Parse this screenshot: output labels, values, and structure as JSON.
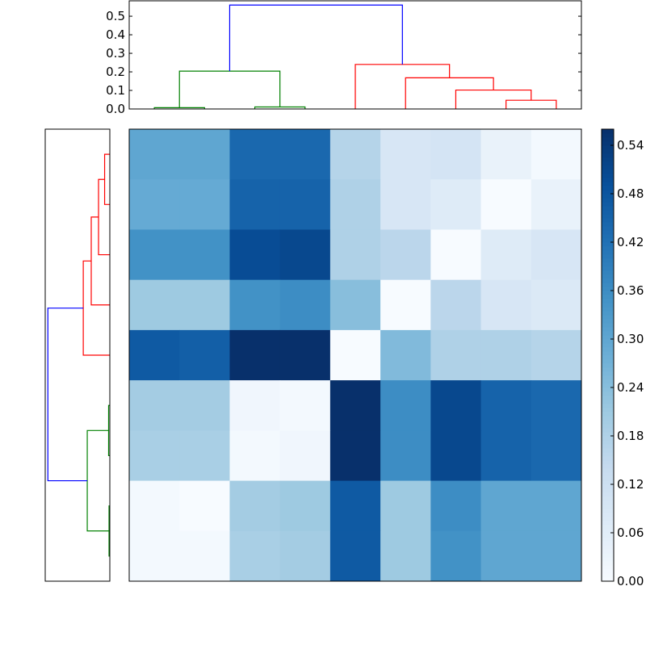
{
  "chart_data": [
    {
      "type": "dendrogram",
      "orientation": "top",
      "ylim": [
        0,
        0.583
      ],
      "yticks": [
        "0.0",
        "0.1",
        "0.2",
        "0.3",
        "0.4",
        "0.5"
      ],
      "ytick_values": [
        0,
        0.1,
        0.2,
        0.3,
        0.4,
        0.5
      ],
      "links": [
        {
          "leaf_pos": [
            0,
            0,
            1,
            1
          ],
          "heights": [
            0,
            0.007,
            0.007,
            0
          ],
          "color": "#008000"
        },
        {
          "leaf_pos": [
            2,
            2,
            3,
            3
          ],
          "heights": [
            0,
            0.011,
            0.011,
            0
          ],
          "color": "#008000"
        },
        {
          "leaf_pos": [
            0.5,
            0.5,
            2.5,
            2.5
          ],
          "heights": [
            0.007,
            0.204,
            0.204,
            0.011
          ],
          "color": "#008000"
        },
        {
          "leaf_pos": [
            7,
            7,
            8,
            8
          ],
          "heights": [
            0,
            0.047,
            0.047,
            0
          ],
          "color": "#ff0000"
        },
        {
          "leaf_pos": [
            6,
            6,
            7.5,
            7.5
          ],
          "heights": [
            0,
            0.102,
            0.102,
            0.047
          ],
          "color": "#ff0000"
        },
        {
          "leaf_pos": [
            5,
            5,
            6.75,
            6.75
          ],
          "heights": [
            0,
            0.168,
            0.168,
            0.102
          ],
          "color": "#ff0000"
        },
        {
          "leaf_pos": [
            4,
            4,
            5.875,
            5.875
          ],
          "heights": [
            0,
            0.24,
            0.24,
            0.168
          ],
          "color": "#ff0000"
        },
        {
          "leaf_pos": [
            1.5,
            1.5,
            4.9375,
            4.9375
          ],
          "heights": [
            0.204,
            0.56,
            0.56,
            0.24
          ],
          "color": "#0000ff"
        }
      ]
    },
    {
      "type": "dendrogram",
      "orientation": "left",
      "xlim": [
        0.584,
        0
      ],
      "links": [
        {
          "leaf_pos": [
            0,
            0,
            1,
            1
          ],
          "heights": [
            0,
            0.047,
            0.047,
            0
          ],
          "color": "#ff0000"
        },
        {
          "leaf_pos": [
            0.5,
            0.5,
            2,
            2
          ],
          "heights": [
            0.047,
            0.102,
            0.102,
            0
          ],
          "color": "#ff0000"
        },
        {
          "leaf_pos": [
            1.25,
            1.25,
            3,
            3
          ],
          "heights": [
            0.102,
            0.168,
            0.168,
            0
          ],
          "color": "#ff0000"
        },
        {
          "leaf_pos": [
            2.125,
            2.125,
            4,
            4
          ],
          "heights": [
            0.168,
            0.24,
            0.24,
            0
          ],
          "color": "#ff0000"
        },
        {
          "leaf_pos": [
            5,
            5,
            6,
            6
          ],
          "heights": [
            0,
            0.011,
            0.011,
            0
          ],
          "color": "#008000"
        },
        {
          "leaf_pos": [
            7,
            7,
            8,
            8
          ],
          "heights": [
            0,
            0.007,
            0.007,
            0
          ],
          "color": "#008000"
        },
        {
          "leaf_pos": [
            5.5,
            5.5,
            7.5,
            7.5
          ],
          "heights": [
            0.011,
            0.204,
            0.204,
            0.007
          ],
          "color": "#008000"
        },
        {
          "leaf_pos": [
            3.0625,
            3.0625,
            6.5,
            6.5
          ],
          "heights": [
            0.24,
            0.56,
            0.56,
            0.204
          ],
          "color": "#0000ff"
        }
      ]
    },
    {
      "type": "heatmap",
      "colormap": "Blues",
      "vmin": 0,
      "vmax": 0.56,
      "values": [
        [
          0.3,
          0.3,
          0.44,
          0.44,
          0.17,
          0.09,
          0.1,
          0.04,
          0.01
        ],
        [
          0.29,
          0.29,
          0.45,
          0.45,
          0.18,
          0.09,
          0.07,
          0.0,
          0.04
        ],
        [
          0.35,
          0.35,
          0.5,
          0.51,
          0.18,
          0.16,
          0.0,
          0.07,
          0.09
        ],
        [
          0.21,
          0.21,
          0.35,
          0.36,
          0.24,
          0.0,
          0.16,
          0.09,
          0.08
        ],
        [
          0.47,
          0.46,
          0.56,
          0.56,
          0.0,
          0.25,
          0.18,
          0.18,
          0.17
        ],
        [
          0.2,
          0.2,
          0.02,
          0.01,
          0.56,
          0.36,
          0.51,
          0.45,
          0.44
        ],
        [
          0.19,
          0.19,
          0.01,
          0.02,
          0.56,
          0.36,
          0.51,
          0.45,
          0.44
        ],
        [
          0.01,
          0.0,
          0.2,
          0.21,
          0.47,
          0.21,
          0.36,
          0.3,
          0.3
        ],
        [
          0.01,
          0.01,
          0.19,
          0.2,
          0.47,
          0.21,
          0.35,
          0.3,
          0.3
        ]
      ]
    },
    {
      "type": "colorbar",
      "colormap": "Blues",
      "range": [
        0,
        0.56
      ],
      "ticks": [
        "0.00",
        "0.06",
        "0.12",
        "0.18",
        "0.24",
        "0.30",
        "0.36",
        "0.42",
        "0.48",
        "0.54"
      ],
      "tick_values": [
        0,
        0.06,
        0.12,
        0.18,
        0.24,
        0.3,
        0.36,
        0.42,
        0.48,
        0.54
      ]
    }
  ]
}
